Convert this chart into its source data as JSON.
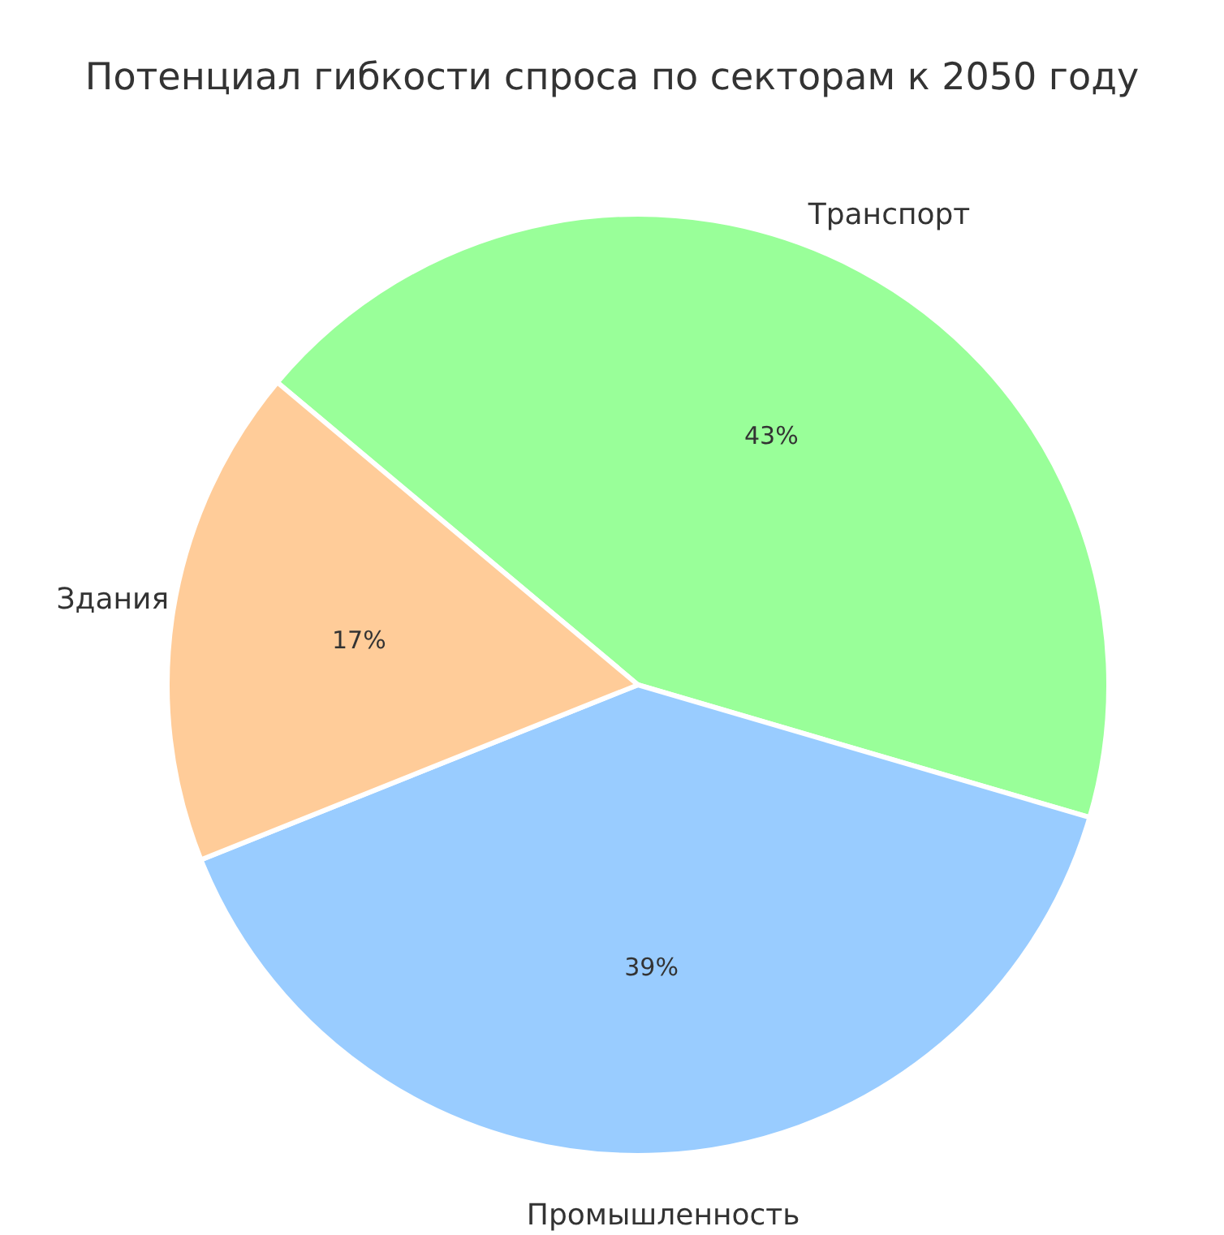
{
  "chart_data": {
    "type": "pie",
    "title": "Потенциал гибкости спроса по секторам к 2050 году",
    "categories": [
      "Транспорт",
      "Промышленность",
      "Здания"
    ],
    "values": [
      43,
      39,
      17
    ],
    "value_labels": [
      "43%",
      "39%",
      "17%"
    ],
    "colors": [
      "#99ff99",
      "#99ccff",
      "#ffcc99"
    ],
    "legend": false
  }
}
